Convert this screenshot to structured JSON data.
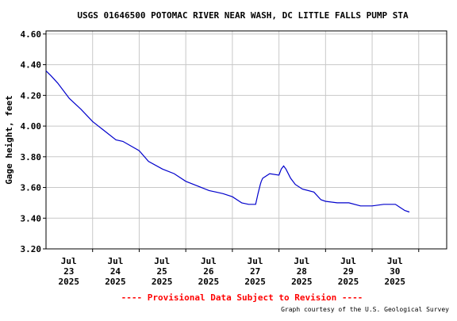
{
  "colors": {
    "line": "#0000cc",
    "grid": "#c8c8c8",
    "frame": "#000000",
    "provisional": "#ff0000"
  },
  "footer": {
    "provisional": "---- Provisional Data Subject to Revision ----",
    "courtesy": "Graph courtesy of the U.S. Geological Survey"
  },
  "chart_data": {
    "type": "line",
    "title": "USGS 01646500 POTOMAC RIVER NEAR WASH, DC LITTLE FALLS PUMP STA",
    "ylabel": "Gage height, feet",
    "xlabel": "",
    "xlim": [
      22.0,
      30.6
    ],
    "ylim": [
      3.2,
      4.62
    ],
    "grid": true,
    "legend": "none",
    "x_ticks": [
      {
        "x": 23,
        "month": "Jul",
        "day": "23",
        "year": "2025"
      },
      {
        "x": 24,
        "month": "Jul",
        "day": "24",
        "year": "2025"
      },
      {
        "x": 25,
        "month": "Jul",
        "day": "25",
        "year": "2025"
      },
      {
        "x": 26,
        "month": "Jul",
        "day": "26",
        "year": "2025"
      },
      {
        "x": 27,
        "month": "Jul",
        "day": "27",
        "year": "2025"
      },
      {
        "x": 28,
        "month": "Jul",
        "day": "28",
        "year": "2025"
      },
      {
        "x": 29,
        "month": "Jul",
        "day": "29",
        "year": "2025"
      },
      {
        "x": 30,
        "month": "Jul",
        "day": "30",
        "year": "2025"
      }
    ],
    "y_ticks": [
      "3.20",
      "3.40",
      "3.60",
      "3.80",
      "4.00",
      "4.20",
      "4.40",
      "4.60"
    ],
    "series": [
      {
        "x": [
          22.0,
          22.1,
          22.25,
          22.5,
          22.75,
          23.0,
          23.25,
          23.5,
          23.65,
          24.0,
          24.2,
          24.5,
          24.75,
          25.0,
          25.25,
          25.5,
          25.65,
          25.8,
          26.0,
          26.2,
          26.35,
          26.5,
          26.55,
          26.6,
          26.62,
          26.65,
          26.7,
          26.8,
          27.0,
          27.05,
          27.1,
          27.15,
          27.25,
          27.35,
          27.5,
          27.75,
          27.9,
          28.0,
          28.25,
          28.5,
          28.75,
          29.0,
          29.25,
          29.5,
          29.6,
          29.7,
          29.8
        ],
        "y": [
          4.36,
          4.33,
          4.28,
          4.18,
          4.11,
          4.03,
          3.97,
          3.91,
          3.9,
          3.84,
          3.77,
          3.72,
          3.69,
          3.64,
          3.61,
          3.58,
          3.57,
          3.56,
          3.54,
          3.5,
          3.49,
          3.49,
          3.56,
          3.62,
          3.64,
          3.66,
          3.67,
          3.69,
          3.68,
          3.72,
          3.74,
          3.72,
          3.66,
          3.62,
          3.59,
          3.57,
          3.52,
          3.51,
          3.5,
          3.5,
          3.48,
          3.48,
          3.49,
          3.49,
          3.47,
          3.45,
          3.44
        ]
      }
    ]
  }
}
